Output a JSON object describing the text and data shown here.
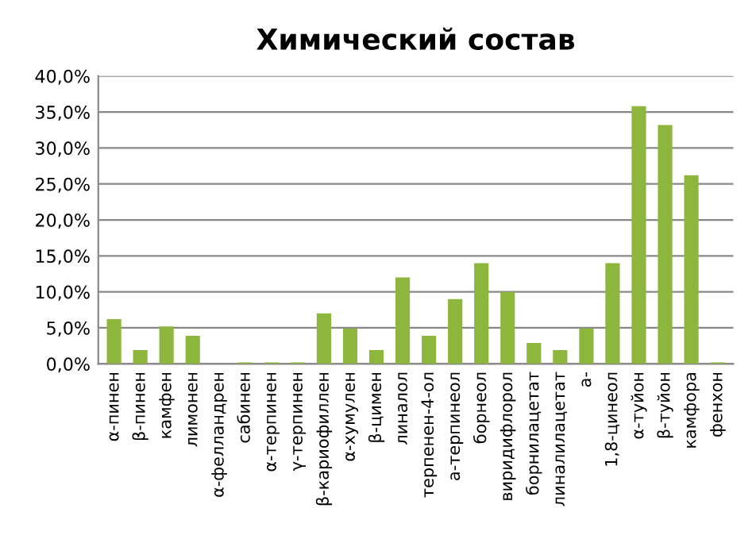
{
  "chart_data": {
    "type": "bar",
    "title": "Химический состав",
    "categories": [
      "α-пинен",
      "β-пинен",
      "камфен",
      "лимонен",
      "α-фелландрен",
      "сабинен",
      "α-терпинен",
      "γ-терпинен",
      "β-кариофиллен",
      "α-хумулен",
      "β-цимен",
      "линалол",
      "терпенен-4-ол",
      "а-терпинеол",
      "борнеол",
      "виридифлорол",
      "борнилацетат",
      "линалилацетат",
      "а-",
      "1,8-цинеол",
      "α-туйон",
      "β-туйон",
      "камфора",
      "фенхон"
    ],
    "values": [
      6.2,
      1.9,
      5.2,
      3.9,
      0,
      0.2,
      0.2,
      0.2,
      7.0,
      4.9,
      1.9,
      12.0,
      3.9,
      9.0,
      14.0,
      10.0,
      2.9,
      1.9,
      4.9,
      14.0,
      35.8,
      33.2,
      26.2,
      0.2
    ],
    "color": "#8db63c",
    "ylim": [
      0,
      40
    ],
    "yticks": [
      {
        "value": 0,
        "label": "0,0%"
      },
      {
        "value": 5,
        "label": "5,0%"
      },
      {
        "value": 10,
        "label": "10,0%"
      },
      {
        "value": 15,
        "label": "15,0%"
      },
      {
        "value": 20,
        "label": "20,0%"
      },
      {
        "value": 25,
        "label": "25,0%"
      },
      {
        "value": 30,
        "label": "30,0%"
      },
      {
        "value": 35,
        "label": "35,0%"
      },
      {
        "value": 40,
        "label": "40,0%"
      }
    ],
    "grid": "y",
    "legend": false
  }
}
